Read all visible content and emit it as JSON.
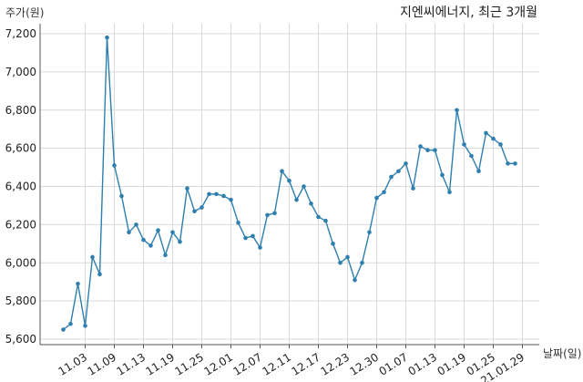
{
  "chart_data": {
    "type": "line",
    "title": "지엔씨에너지, 최근 3개월",
    "ylabel": "주가(원)",
    "xlabel": "날짜(일)",
    "ylim": [
      5600,
      7250
    ],
    "yticks": [
      5600,
      5800,
      6000,
      6200,
      6400,
      6600,
      6800,
      7000,
      7200
    ],
    "ytick_labels": [
      "5,600",
      "5,800",
      "6,000",
      "6,200",
      "6,400",
      "6,600",
      "6,800",
      "7,000",
      "7,200"
    ],
    "xtick_labels": [
      "11.03",
      "11.09",
      "11.13",
      "11.19",
      "11.25",
      "12.01",
      "12.07",
      "12.11",
      "12.17",
      "12.23",
      "12.30",
      "01.07",
      "01.13",
      "01.19",
      "01.25",
      "21.01.29"
    ],
    "xtick_index": [
      4,
      8,
      12,
      16,
      20,
      24,
      28,
      32,
      36,
      40,
      44,
      48,
      52,
      56,
      60,
      64
    ],
    "grid": true,
    "line_color": "#2e7fae",
    "series": [
      {
        "values": [
          5650,
          5680,
          5890,
          5670,
          6030,
          5940,
          7180,
          6510,
          6350,
          6160,
          6200,
          6120,
          6090,
          6170,
          6040,
          6160,
          6110,
          6390,
          6270,
          6290,
          6360,
          6360,
          6350,
          6330,
          6210,
          6130,
          6140,
          6080,
          6250,
          6260,
          6480,
          6430,
          6330,
          6400,
          6310,
          6240,
          6220,
          6100,
          6000,
          6030,
          5910,
          6000,
          6160,
          6340,
          6370,
          6450,
          6480,
          6520,
          6390,
          6610,
          6590,
          6590,
          6460,
          6370,
          6800,
          6620,
          6560,
          6480,
          6680,
          6650,
          6620,
          6520,
          6520
        ]
      }
    ]
  }
}
